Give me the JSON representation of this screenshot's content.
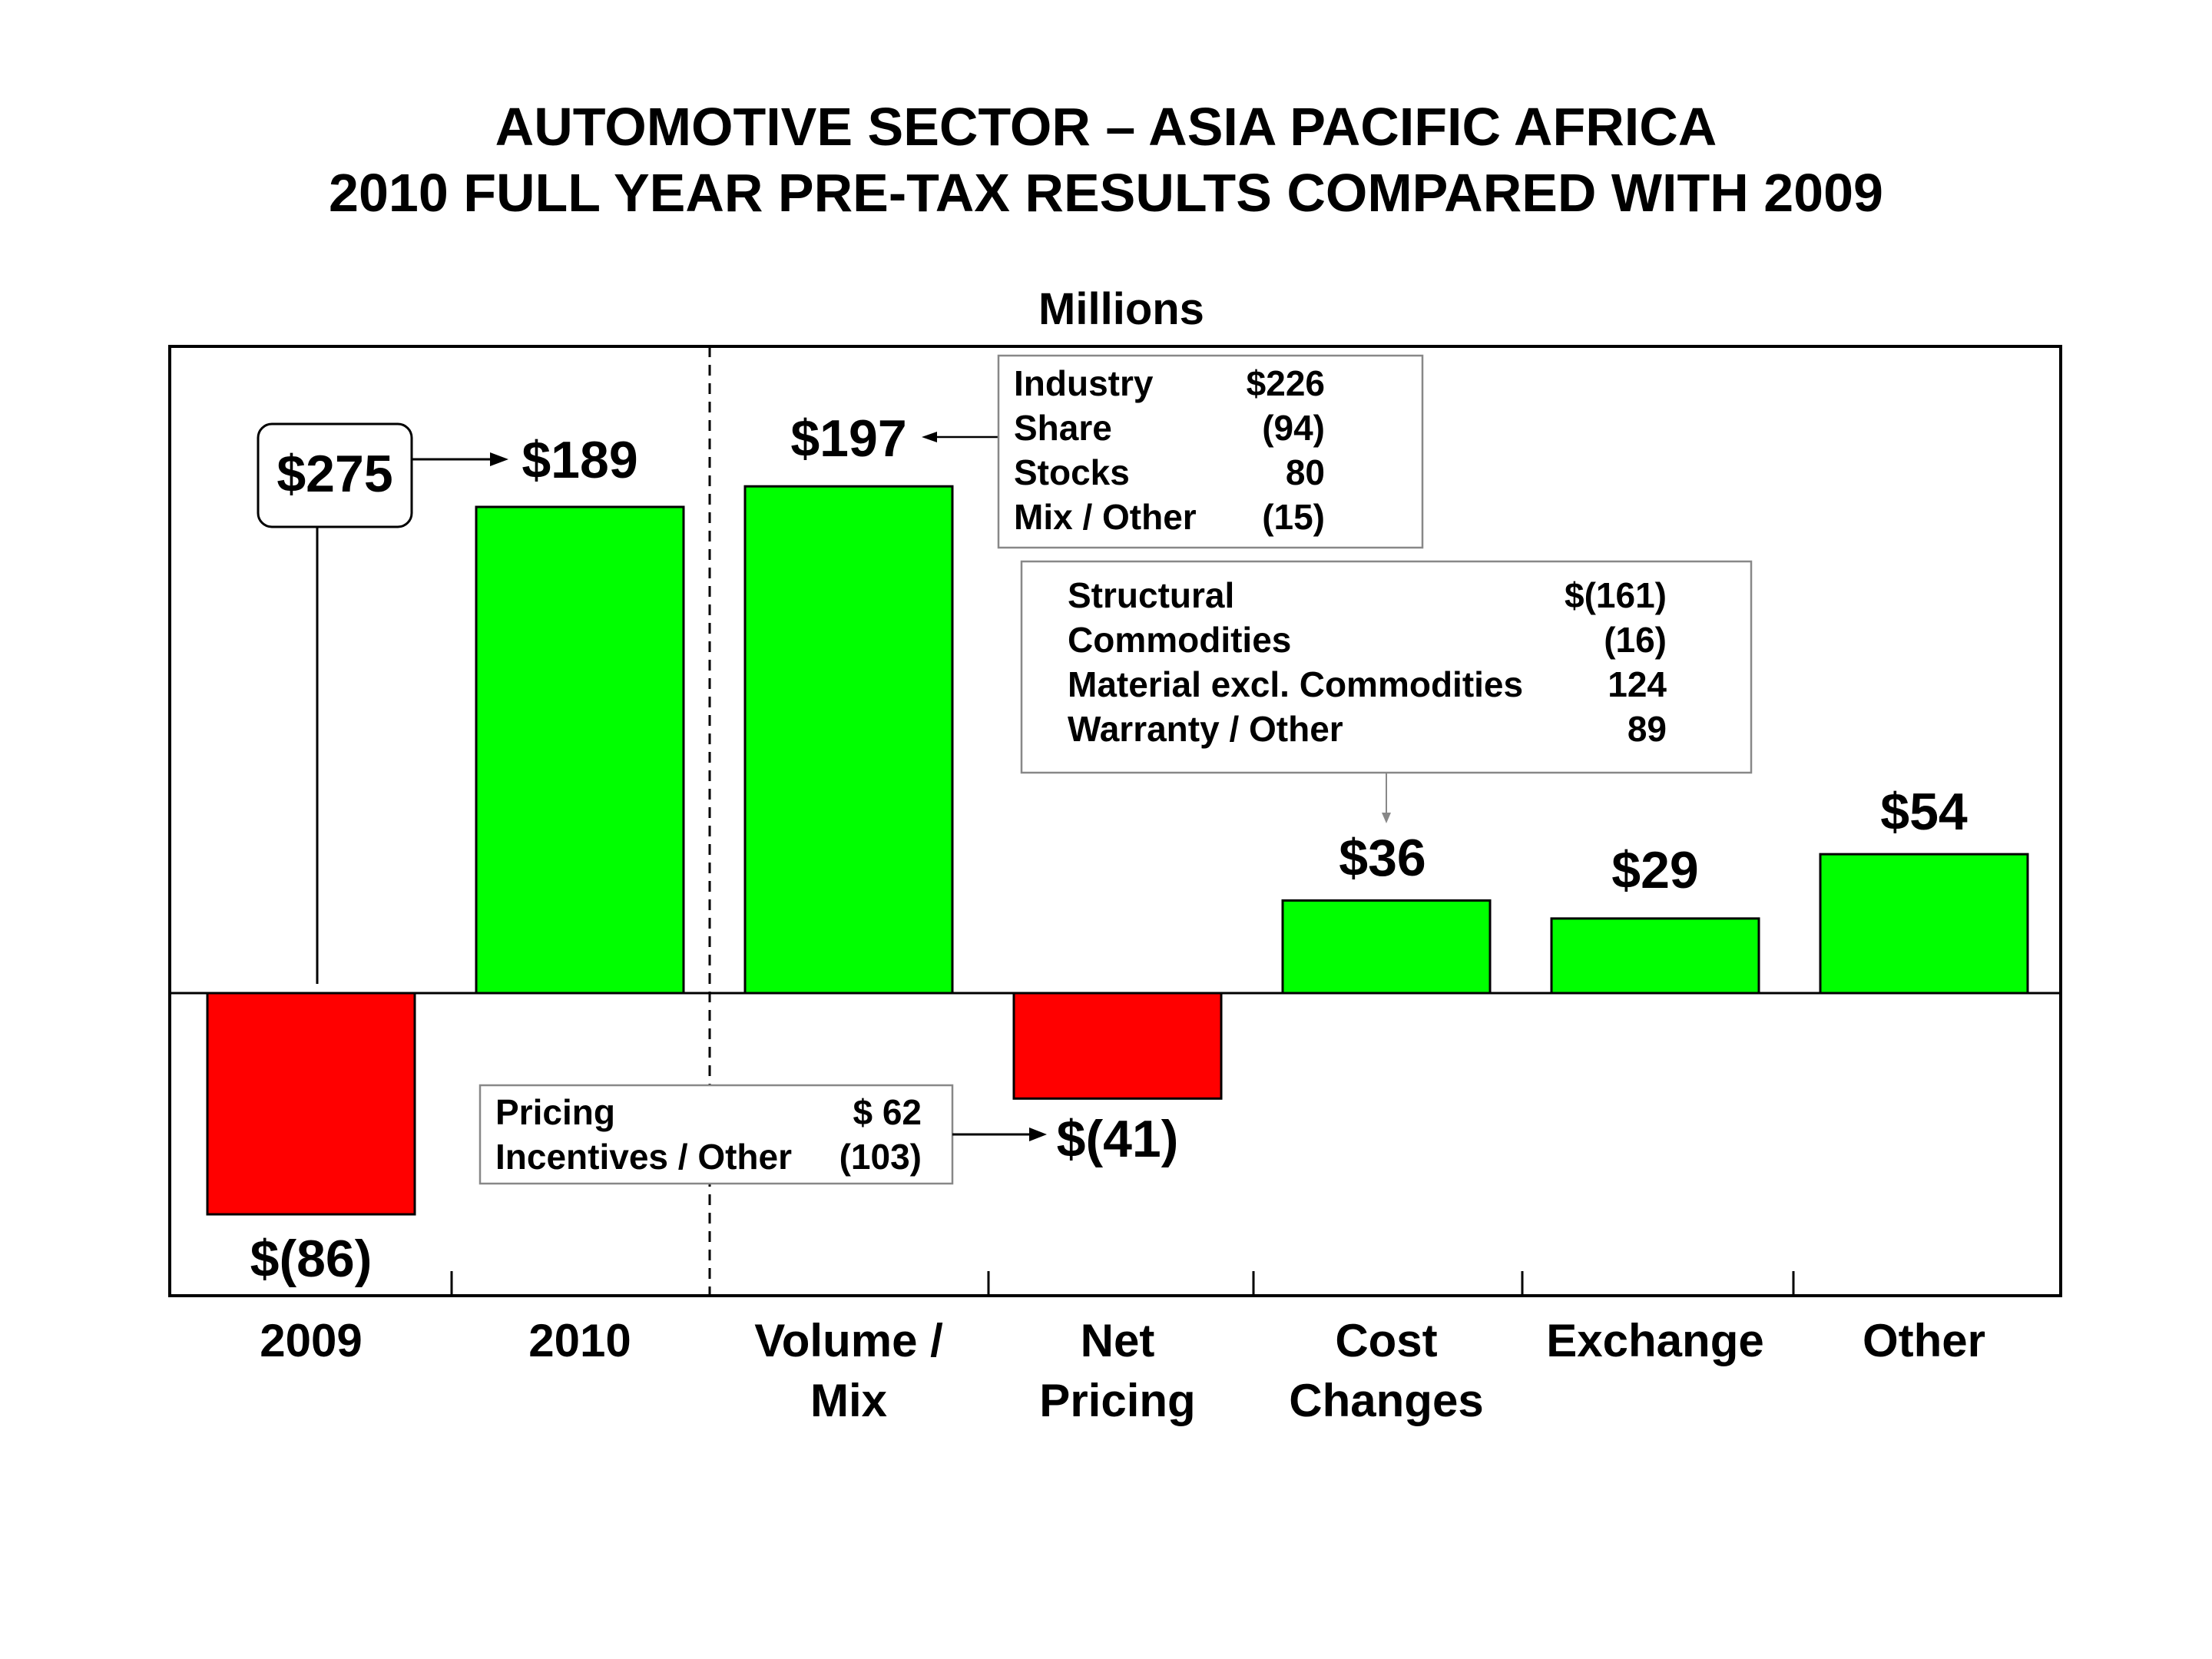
{
  "title": {
    "line1": "AUTOMOTIVE SECTOR – ASIA PACIFIC AFRICA",
    "line2": "2010 FULL YEAR PRE-TAX RESULTS COMPARED WITH 2009"
  },
  "units_label": "Millions",
  "colors": {
    "positive": "#00ff00",
    "negative": "#ff0000",
    "outline": "#000000"
  },
  "chart_data": {
    "type": "bar",
    "subtype": "waterfall",
    "ylabel": "Millions",
    "categories": [
      [
        "2009"
      ],
      [
        "2010"
      ],
      [
        "Volume /",
        "Mix"
      ],
      [
        "Net",
        "Pricing"
      ],
      [
        "Cost",
        "Changes"
      ],
      [
        "Exchange"
      ],
      [
        "Other"
      ]
    ],
    "values": [
      -86,
      189,
      197,
      -41,
      36,
      29,
      54
    ],
    "value_labels": [
      "$(86)",
      "$189",
      "$197",
      "$(41)",
      "$36",
      "$29",
      "$54"
    ],
    "ylim": [
      -118,
      250
    ],
    "grid": false,
    "legend": "none",
    "total_2009": {
      "value": 275,
      "label": "$275"
    },
    "annotations": {
      "volume_mix": [
        {
          "label": "Industry",
          "value": "$226"
        },
        {
          "label": "Share",
          "value": "(94)"
        },
        {
          "label": "Stocks",
          "value": "80"
        },
        {
          "label": "Mix / Other",
          "value": "(15)"
        }
      ],
      "cost_changes": [
        {
          "label": "Structural",
          "value": "$(161)"
        },
        {
          "label": "Commodities",
          "value": "(16)"
        },
        {
          "label": "Material excl. Commodities",
          "value": "124"
        },
        {
          "label": "Warranty / Other",
          "value": "89"
        }
      ],
      "net_pricing": [
        {
          "label": "Pricing",
          "value": "$  62"
        },
        {
          "label": "Incentives / Other",
          "value": "(103)"
        }
      ]
    }
  }
}
